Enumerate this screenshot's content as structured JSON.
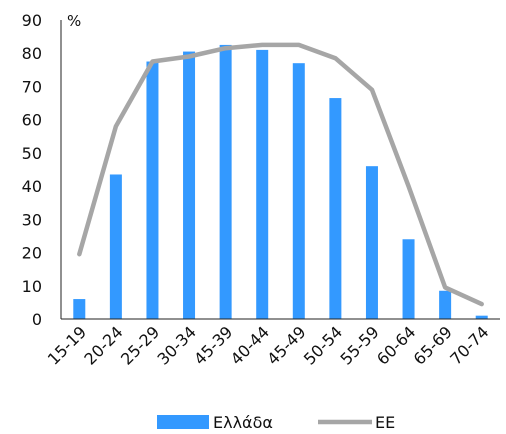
{
  "chart_data": {
    "type": "bar",
    "categories": [
      "15-19",
      "20-24",
      "25-29",
      "30-34",
      "45-39",
      "40-44",
      "45-49",
      "50-54",
      "55-59",
      "60-64",
      "65-69",
      "70-74"
    ],
    "series": [
      {
        "name": "Ελλάδα",
        "type": "bar",
        "color": "#3399ff",
        "values": [
          6,
          43.5,
          77.5,
          80.5,
          82.5,
          81,
          77,
          66.5,
          46,
          24,
          8.5,
          1
        ]
      },
      {
        "name": "ΕΕ",
        "type": "line",
        "color": "#a6a6a6",
        "values": [
          19.5,
          58,
          77.5,
          79,
          81.5,
          82.5,
          82.5,
          78.5,
          69,
          40,
          9.5,
          4.5
        ]
      }
    ],
    "y_unit": "%",
    "ylim": [
      0,
      90
    ],
    "y_ticks": [
      "0",
      "10",
      "20",
      "30",
      "40",
      "50",
      "60",
      "70",
      "80",
      "90"
    ],
    "grid": false,
    "legend_position": "bottom"
  }
}
